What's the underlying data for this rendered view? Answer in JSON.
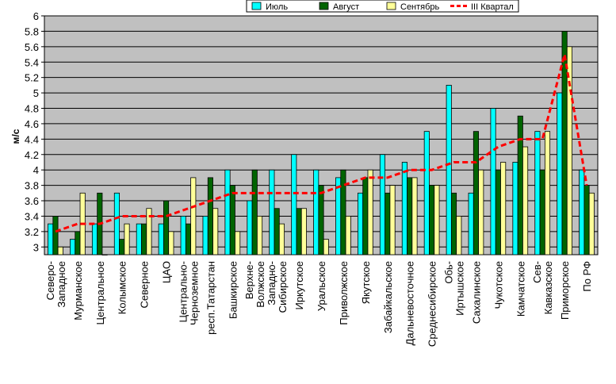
{
  "chart_data": {
    "type": "bar",
    "ylabel": "м/с",
    "ylim": [
      2.9,
      6
    ],
    "yticks": [
      3,
      3.2,
      3.4,
      3.6,
      3.8,
      4,
      4.2,
      4.4,
      4.6,
      4.8,
      5,
      5.2,
      5.4,
      5.6,
      5.8,
      6
    ],
    "grid": true,
    "legend_position": "top-right",
    "categories": [
      "Северо-Западное",
      "Мурманское",
      "Центральное",
      "Колымское",
      "Северное",
      "ЦАО",
      "Центрально-Черноземное",
      "респ.Татарстан",
      "Башкирское",
      "Верхне-Волжское",
      "Западно-Сибирское",
      "Иркутское",
      "Уральское",
      "Приволжское",
      "Якутское",
      "Забайкальское",
      "Дальневосточное",
      "Среднесибирское",
      "Обь-Иртышское",
      "Сахалинское",
      "Чукотское",
      "Камчатское",
      "Сев-Кавказское",
      "Приморское",
      "По РФ"
    ],
    "category_label_lines": [
      [
        "Северо-",
        "Западное"
      ],
      [
        "Мурманское"
      ],
      [
        "Центральное"
      ],
      [
        "Колымское"
      ],
      [
        "Северное"
      ],
      [
        "ЦАО"
      ],
      [
        "Центрально-",
        "Черноземное"
      ],
      [
        "респ.Татарстан"
      ],
      [
        "Башкирское"
      ],
      [
        "Верхне-",
        "Волжское"
      ],
      [
        "Западно-",
        "Сибирское"
      ],
      [
        "Иркутское"
      ],
      [
        "Уральское"
      ],
      [
        "Приволжское"
      ],
      [
        "Якутское"
      ],
      [
        "Забайкальское"
      ],
      [
        "Дальневосточное"
      ],
      [
        "Среднесибирское"
      ],
      [
        "Обь-",
        "Иртышское"
      ],
      [
        "Сахалинское"
      ],
      [
        "Чукотское"
      ],
      [
        "Камчатское"
      ],
      [
        "Сев-",
        "Кавказское"
      ],
      [
        "Приморское"
      ],
      [
        "По РФ"
      ]
    ],
    "series": [
      {
        "name": "Июль",
        "type": "bar",
        "color": "#00ffff",
        "values": [
          3.3,
          3.1,
          3.3,
          3.7,
          3.3,
          3.3,
          3.4,
          3.4,
          4.0,
          3.6,
          4.0,
          4.2,
          4.0,
          3.9,
          3.7,
          4.2,
          4.1,
          4.5,
          5.1,
          3.7,
          4.8,
          4.1,
          4.5,
          5.0,
          4.0
        ]
      },
      {
        "name": "Август",
        "type": "bar",
        "color": "#006400",
        "values": [
          3.4,
          3.2,
          3.7,
          3.1,
          3.3,
          3.6,
          3.3,
          3.9,
          3.8,
          4.0,
          3.5,
          3.5,
          3.8,
          4.0,
          3.9,
          3.7,
          3.9,
          3.8,
          3.7,
          4.5,
          4.0,
          4.7,
          4.0,
          5.8,
          3.8
        ]
      },
      {
        "name": "Сентябрь",
        "type": "bar",
        "color": "#ffff99",
        "values": [
          3.0,
          3.7,
          2.9,
          3.3,
          3.5,
          3.2,
          3.9,
          3.5,
          3.2,
          3.4,
          3.3,
          3.5,
          3.1,
          3.4,
          4.0,
          3.8,
          3.9,
          3.8,
          3.4,
          4.0,
          4.1,
          4.3,
          4.5,
          5.6,
          3.7
        ]
      },
      {
        "name": "III Квартал",
        "type": "line",
        "color": "#ff0000",
        "values": [
          3.2,
          3.3,
          3.3,
          3.4,
          3.4,
          3.4,
          3.5,
          3.6,
          3.7,
          3.7,
          3.7,
          3.7,
          3.7,
          3.8,
          3.9,
          3.9,
          4.0,
          4.0,
          4.1,
          4.1,
          4.3,
          4.4,
          4.4,
          5.5,
          3.8
        ]
      }
    ]
  }
}
